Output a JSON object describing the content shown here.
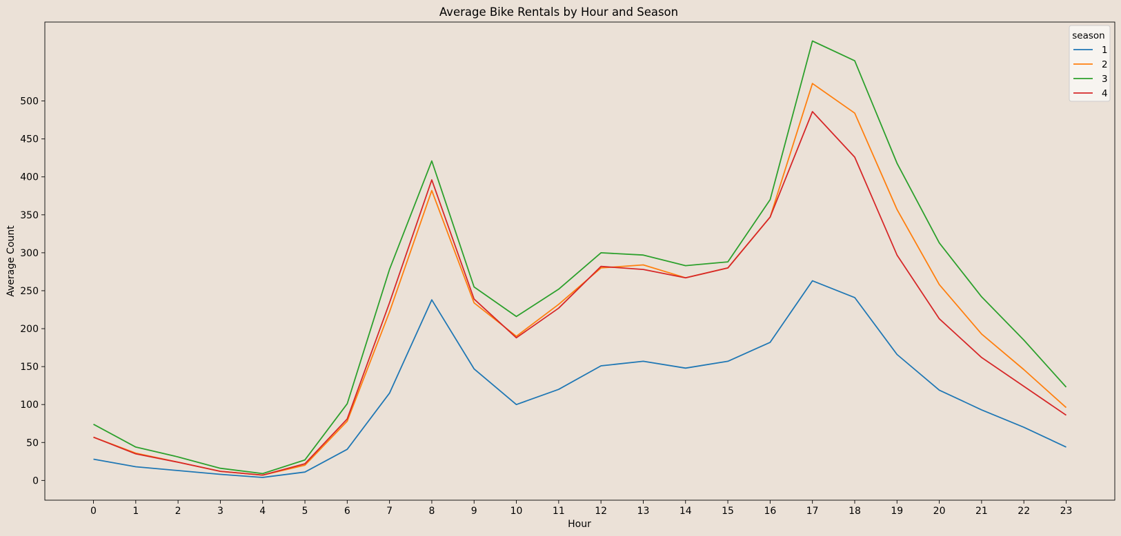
{
  "chart_data": {
    "type": "line",
    "title": "Average Bike Rentals by Hour and Season",
    "xlabel": "Hour",
    "ylabel": "Average Count",
    "x": [
      0,
      1,
      2,
      3,
      4,
      5,
      6,
      7,
      8,
      9,
      10,
      11,
      12,
      13,
      14,
      15,
      16,
      17,
      18,
      19,
      20,
      21,
      22,
      23
    ],
    "xlim": [
      -1.15,
      24.15
    ],
    "ylim": [
      -26,
      604
    ],
    "yticks": [
      0,
      50,
      100,
      150,
      200,
      250,
      300,
      350,
      400,
      450,
      500
    ],
    "grid": false,
    "legend": {
      "title": "season",
      "placement": "top-right"
    },
    "series": [
      {
        "name": "1",
        "color": "#1f77b4",
        "values": [
          28,
          18,
          13,
          8,
          4,
          11,
          41,
          115,
          238,
          147,
          100,
          120,
          151,
          157,
          148,
          157,
          182,
          263,
          241,
          166,
          119,
          93,
          70,
          44
        ]
      },
      {
        "name": "2",
        "color": "#ff7f0e",
        "values": [
          57,
          36,
          24,
          12,
          7,
          20,
          78,
          222,
          382,
          234,
          190,
          232,
          280,
          284,
          267,
          280,
          347,
          523,
          484,
          357,
          258,
          193,
          146,
          96
        ]
      },
      {
        "name": "3",
        "color": "#2ca02c",
        "values": [
          74,
          44,
          31,
          16,
          9,
          27,
          101,
          278,
          421,
          255,
          216,
          252,
          300,
          297,
          283,
          288,
          370,
          579,
          553,
          418,
          313,
          242,
          185,
          123
        ]
      },
      {
        "name": "4",
        "color": "#d62728",
        "values": [
          57,
          35,
          24,
          12,
          7,
          22,
          81,
          234,
          396,
          239,
          188,
          227,
          282,
          278,
          267,
          280,
          347,
          486,
          426,
          297,
          213,
          162,
          124,
          86
        ]
      }
    ]
  }
}
